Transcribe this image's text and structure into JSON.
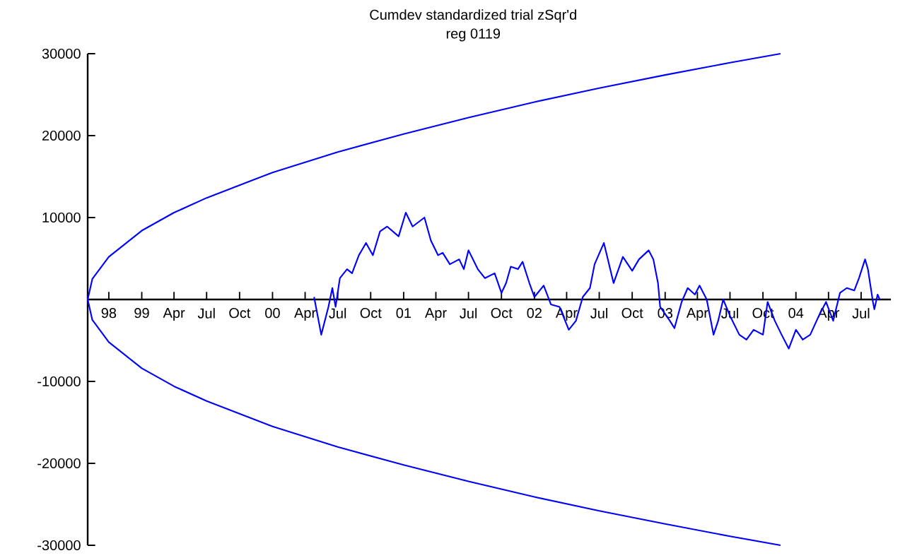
{
  "chart_data": {
    "type": "line",
    "title": "Cumdev   standardized   trial  zSqr'd",
    "subtitle": "reg 0119",
    "xlim": [
      "1998-08-03",
      "2004-09-22"
    ],
    "ylim": [
      -30000,
      30000
    ],
    "xticks": [
      {
        "value": "1998-10-01",
        "label": "98"
      },
      {
        "value": "1999-01-01",
        "label": "99"
      },
      {
        "value": "1999-04-01",
        "label": "Apr"
      },
      {
        "value": "1999-07-01",
        "label": "Jul"
      },
      {
        "value": "1999-10-01",
        "label": "Oct"
      },
      {
        "value": "2000-01-01",
        "label": "00"
      },
      {
        "value": "2000-04-01",
        "label": "Apr"
      },
      {
        "value": "2000-07-01",
        "label": "Jul"
      },
      {
        "value": "2000-10-01",
        "label": "Oct"
      },
      {
        "value": "2001-01-01",
        "label": "01"
      },
      {
        "value": "2001-04-01",
        "label": "Apr"
      },
      {
        "value": "2001-07-01",
        "label": "Jul"
      },
      {
        "value": "2001-10-01",
        "label": "Oct"
      },
      {
        "value": "2002-01-01",
        "label": "02"
      },
      {
        "value": "2002-04-01",
        "label": "Apr"
      },
      {
        "value": "2002-07-01",
        "label": "Jul"
      },
      {
        "value": "2002-10-01",
        "label": "Oct"
      },
      {
        "value": "2003-01-01",
        "label": "03"
      },
      {
        "value": "2003-04-01",
        "label": "Apr"
      },
      {
        "value": "2003-07-01",
        "label": "Jul"
      },
      {
        "value": "2003-10-01",
        "label": "Oct"
      },
      {
        "value": "2004-01-01",
        "label": "04"
      },
      {
        "value": "2004-04-01",
        "label": "Apr"
      },
      {
        "value": "2004-07-01",
        "label": "Jul"
      }
    ],
    "yticks": [
      -30000,
      -20000,
      -10000,
      10000,
      20000,
      30000
    ],
    "grid": false,
    "marker": "none",
    "line_style": "solid",
    "series": [
      {
        "color": "#0000ff",
        "x": [
          "2003-11-19",
          "2003-07-01",
          "2003-01-01",
          "2002-07-01",
          "2002-01-01",
          "2001-07-01",
          "2001-01-01",
          "2000-07-01",
          "2000-01-01",
          "1999-07-01",
          "1999-04-01",
          "1999-01-01",
          "1998-10-01",
          "1998-08-16",
          "1998-08-03",
          "1998-08-16",
          "1998-10-01",
          "1999-01-01",
          "1999-04-01",
          "1999-07-01",
          "2000-01-01",
          "2000-07-01",
          "2001-01-01",
          "2001-07-01",
          "2002-01-01",
          "2002-07-01",
          "2003-01-01",
          "2003-07-01",
          "2003-11-19"
        ],
        "values": [
          30000,
          28900,
          27400,
          25800,
          24100,
          22200,
          20200,
          18000,
          15500,
          12400,
          10600,
          8400,
          5200,
          2500,
          0,
          -2500,
          -5200,
          -8400,
          -10600,
          -12400,
          -15500,
          -18000,
          -20200,
          -22200,
          -24100,
          -25800,
          -27400,
          -28900,
          -30000
        ]
      },
      {
        "color": "#0000ff",
        "x": [
          "2000-04-26",
          "2000-05-16",
          "2000-06-05",
          "2000-06-16",
          "2000-06-25",
          "2000-07-07",
          "2000-07-27",
          "2000-08-10",
          "2000-08-29",
          "2000-09-18",
          "2000-10-07",
          "2000-10-27",
          "2000-11-16",
          "2000-12-18",
          "2001-01-07",
          "2001-01-26",
          "2001-02-28",
          "2001-03-18",
          "2001-04-07",
          "2001-04-20",
          "2001-05-10",
          "2001-06-05",
          "2001-06-18",
          "2001-07-01",
          "2001-07-27",
          "2001-08-16",
          "2001-09-12",
          "2001-10-01",
          "2001-10-14",
          "2001-10-27",
          "2001-11-16",
          "2001-11-29",
          "2001-12-18",
          "2002-01-01",
          "2002-01-27",
          "2002-02-16",
          "2002-03-12",
          "2002-04-07",
          "2002-04-27",
          "2002-05-16",
          "2002-06-05",
          "2002-06-18",
          "2002-07-14",
          "2002-08-10",
          "2002-09-05",
          "2002-10-01",
          "2002-10-20",
          "2002-11-16",
          "2002-11-29",
          "2002-12-12",
          "2002-12-18",
          "2003-01-14",
          "2003-01-27",
          "2003-02-16",
          "2003-03-05",
          "2003-03-25",
          "2003-04-07",
          "2003-04-27",
          "2003-05-16",
          "2003-05-29",
          "2003-06-12",
          "2003-07-01",
          "2003-07-27",
          "2003-08-16",
          "2003-09-05",
          "2003-10-01",
          "2003-10-14",
          "2003-11-03",
          "2003-11-22",
          "2003-12-12",
          "2004-01-01",
          "2004-01-20",
          "2004-02-10",
          "2004-03-05",
          "2004-03-25",
          "2004-04-14",
          "2004-05-03",
          "2004-05-22",
          "2004-06-12",
          "2004-06-25",
          "2004-07-12",
          "2004-07-20",
          "2004-08-03",
          "2004-08-07",
          "2004-08-16",
          "2004-08-22"
        ],
        "values": [
          300,
          -4300,
          -900,
          1400,
          -900,
          2600,
          3700,
          3200,
          5400,
          6900,
          5400,
          8300,
          8900,
          7700,
          10600,
          8900,
          10000,
          7200,
          5400,
          5700,
          4300,
          4900,
          3700,
          6000,
          3700,
          2600,
          3200,
          800,
          2000,
          4000,
          3700,
          4600,
          2000,
          300,
          1700,
          -600,
          -900,
          -3700,
          -2600,
          300,
          1400,
          4300,
          6900,
          2000,
          5200,
          3500,
          4900,
          6000,
          4900,
          2000,
          -900,
          -2600,
          -3500,
          -300,
          1400,
          600,
          1700,
          0,
          -4300,
          -2600,
          0,
          -2000,
          -4300,
          -4900,
          -3700,
          -4300,
          -300,
          -2600,
          -4300,
          -6000,
          -3700,
          -4900,
          -4300,
          -2000,
          -300,
          -2600,
          800,
          1400,
          1100,
          2600,
          4900,
          3700,
          -300,
          -1200,
          600,
          0
        ]
      }
    ]
  }
}
